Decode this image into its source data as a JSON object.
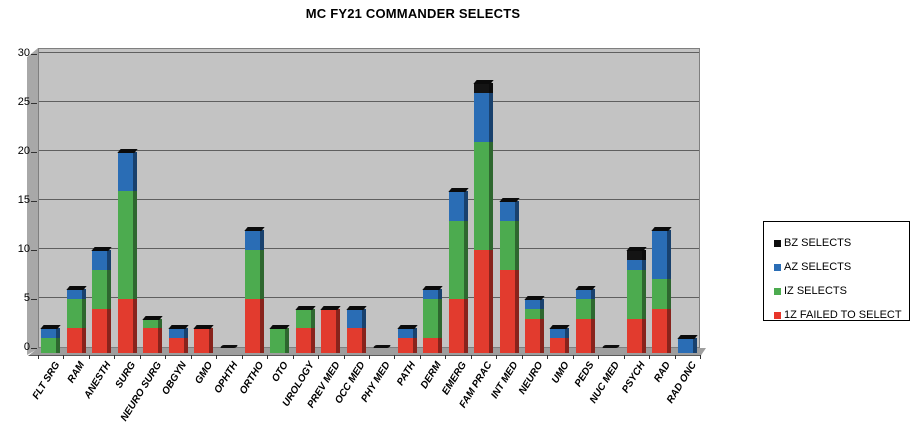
{
  "title": "MC FY21 COMMANDER SELECTS",
  "y_axis": {
    "ticks": [
      0,
      5,
      10,
      15,
      20,
      25,
      30
    ],
    "max": 30
  },
  "legend": {
    "items": [
      {
        "label": "BZ SELECTS",
        "color": "#0d0d0d"
      },
      {
        "label": "AZ SELECTS",
        "color": "#2a6db5"
      },
      {
        "label": "IZ SELECTS",
        "color": "#4cab4f"
      },
      {
        "label": "1Z FAILED TO SELECT",
        "color": "#e8352a"
      }
    ]
  },
  "chart_data": {
    "type": "bar",
    "stacked": true,
    "title": "MC FY21 COMMANDER SELECTS",
    "xlabel": "",
    "ylabel": "",
    "ylim": [
      0,
      30
    ],
    "grid": true,
    "legend_position": "right",
    "categories": [
      "FLT SRG",
      "RAM",
      "ANESTH",
      "SURG",
      "NEURO SURG",
      "OBGYN",
      "GMO",
      "OPHTH",
      "ORTHO",
      "OTO",
      "UROLOGY",
      "PREV MED",
      "OCC MED",
      "PHY MED",
      "PATH",
      "DERM",
      "EMERG",
      "FAM PRAC",
      "INT MED",
      "NEURO",
      "UMO",
      "PEDS",
      "NUC MED",
      "PSYCH",
      "RAD",
      "RAD ONC"
    ],
    "series": [
      {
        "name": "1Z FAILED TO SELECT",
        "color": "#e23b2e",
        "values": [
          0,
          2,
          4,
          5,
          2,
          1,
          2,
          0,
          5,
          0,
          2,
          4,
          2,
          0,
          1,
          1,
          5,
          10,
          8,
          3,
          1,
          3,
          0,
          3,
          4,
          0
        ]
      },
      {
        "name": "IZ SELECTS",
        "color": "#4cab4f",
        "values": [
          1,
          3,
          4,
          11,
          1,
          0,
          0,
          0,
          5,
          2,
          2,
          0,
          0,
          0,
          0,
          4,
          8,
          11,
          5,
          1,
          0,
          2,
          0,
          5,
          3,
          0
        ]
      },
      {
        "name": "AZ SELECTS",
        "color": "#2a6db5",
        "values": [
          1,
          1,
          2,
          4,
          0,
          1,
          0,
          0,
          2,
          0,
          0,
          0,
          2,
          0,
          1,
          1,
          3,
          5,
          2,
          1,
          1,
          1,
          0,
          1,
          5,
          1
        ]
      },
      {
        "name": "BZ SELECTS",
        "color": "#141414",
        "values": [
          0,
          0,
          0,
          0,
          0,
          0,
          0,
          0,
          0,
          0,
          0,
          0,
          0,
          0,
          0,
          0,
          0,
          1,
          0,
          0,
          0,
          0,
          0,
          1,
          0,
          0
        ]
      }
    ],
    "totals": [
      2,
      6,
      10,
      20,
      3,
      2,
      2,
      0,
      12,
      2,
      4,
      4,
      4,
      0,
      2,
      6,
      16,
      27,
      15,
      5,
      2,
      6,
      0,
      10,
      12,
      1
    ]
  }
}
